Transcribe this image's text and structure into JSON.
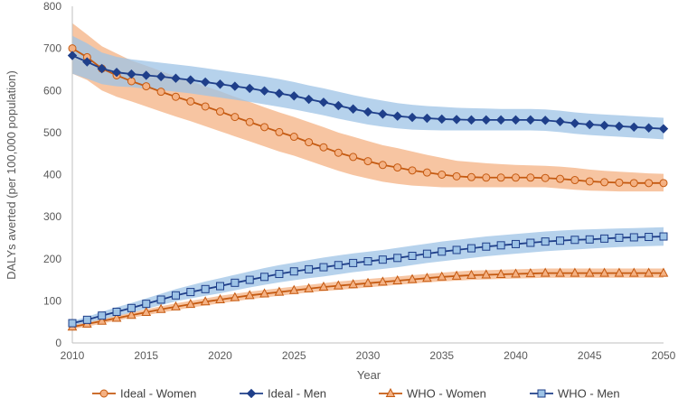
{
  "chart_data": {
    "type": "line",
    "title": "",
    "xlabel": "Year",
    "ylabel": "DALYs averted (per 100,000 population)",
    "xlim": [
      2010,
      2050
    ],
    "ylim": [
      0,
      800
    ],
    "x_ticks": [
      "2010",
      "2015",
      "2020",
      "2025",
      "2030",
      "2035",
      "2040",
      "2045",
      "2050"
    ],
    "y_ticks": [
      "0",
      "100",
      "200",
      "300",
      "400",
      "500",
      "600",
      "700",
      "800"
    ],
    "grid": false,
    "legend_position": "bottom",
    "years": [
      2010,
      2011,
      2012,
      2013,
      2014,
      2015,
      2016,
      2017,
      2018,
      2019,
      2020,
      2021,
      2022,
      2023,
      2024,
      2025,
      2026,
      2027,
      2028,
      2029,
      2030,
      2031,
      2032,
      2033,
      2034,
      2035,
      2036,
      2037,
      2038,
      2039,
      2040,
      2041,
      2042,
      2043,
      2044,
      2045,
      2046,
      2047,
      2048,
      2049,
      2050
    ],
    "series": [
      {
        "name": "Ideal - Women",
        "color": "#c55a11",
        "band_color": "#f4b183",
        "marker": "circle",
        "values": [
          700,
          679,
          652,
          636,
          622,
          610,
          597,
          585,
          574,
          562,
          550,
          537,
          525,
          513,
          501,
          490,
          477,
          465,
          452,
          442,
          432,
          423,
          417,
          410,
          405,
          400,
          396,
          394,
          393,
          393,
          393,
          393,
          392,
          390,
          387,
          384,
          382,
          381,
          380,
          380,
          380
        ],
        "lower": [
          640,
          625,
          600,
          585,
          574,
          562,
          550,
          538,
          527,
          515,
          503,
          491,
          479,
          467,
          455,
          445,
          433,
          421,
          409,
          399,
          391,
          383,
          378,
          374,
          372,
          370,
          370,
          370,
          370,
          370,
          370,
          370,
          370,
          367,
          364,
          362,
          361,
          360,
          360,
          360,
          360
        ],
        "upper": [
          760,
          733,
          705,
          688,
          671,
          659,
          646,
          633,
          622,
          610,
          598,
          585,
          573,
          560,
          548,
          537,
          525,
          513,
          500,
          490,
          480,
          470,
          463,
          455,
          447,
          440,
          433,
          430,
          427,
          425,
          423,
          422,
          421,
          419,
          416,
          412,
          409,
          407,
          405,
          403,
          402
        ]
      },
      {
        "name": "Ideal - Men",
        "color": "#1f3f8a",
        "band_color": "#9dc3e6",
        "marker": "diamond",
        "values": [
          683,
          668,
          652,
          643,
          639,
          636,
          633,
          629,
          625,
          620,
          615,
          610,
          605,
          599,
          593,
          587,
          579,
          572,
          564,
          556,
          549,
          544,
          539,
          536,
          534,
          532,
          531,
          530,
          530,
          530,
          530,
          530,
          529,
          526,
          522,
          519,
          517,
          515,
          513,
          511,
          509
        ],
        "lower": [
          640,
          628,
          615,
          610,
          608,
          604,
          601,
          597,
          593,
          588,
          583,
          578,
          573,
          567,
          561,
          555,
          548,
          541,
          533,
          526,
          519,
          514,
          510,
          507,
          506,
          505,
          505,
          505,
          505,
          505,
          505,
          505,
          504,
          501,
          497,
          494,
          492,
          490,
          488,
          486,
          484
        ],
        "upper": [
          730,
          712,
          690,
          680,
          674,
          670,
          666,
          662,
          658,
          653,
          648,
          643,
          638,
          633,
          627,
          620,
          612,
          605,
          597,
          589,
          582,
          576,
          570,
          566,
          563,
          561,
          559,
          558,
          557,
          556,
          556,
          556,
          555,
          552,
          548,
          545,
          543,
          541,
          539,
          537,
          535
        ]
      },
      {
        "name": "WHO - Women",
        "color": "#c55a11",
        "band_color": "#f4b183",
        "marker": "triangle",
        "values": [
          38,
          45,
          52,
          59,
          66,
          73,
          80,
          86,
          92,
          98,
          103,
          108,
          113,
          117,
          121,
          125,
          129,
          133,
          136,
          139,
          142,
          145,
          148,
          151,
          154,
          157,
          159,
          161,
          162,
          163,
          164,
          165,
          166,
          166,
          166,
          166,
          166,
          166,
          166,
          166,
          166
        ],
        "lower": [
          33,
          39,
          46,
          53,
          60,
          66,
          72,
          78,
          84,
          89,
          94,
          99,
          104,
          108,
          112,
          116,
          120,
          123,
          126,
          129,
          132,
          135,
          138,
          141,
          144,
          146,
          148,
          150,
          151,
          152,
          153,
          154,
          155,
          155,
          155,
          155,
          155,
          155,
          155,
          155,
          155
        ],
        "upper": [
          43,
          51,
          58,
          65,
          72,
          80,
          87,
          94,
          100,
          106,
          112,
          117,
          122,
          126,
          130,
          134,
          138,
          142,
          146,
          149,
          152,
          155,
          158,
          161,
          164,
          167,
          170,
          172,
          173,
          174,
          175,
          176,
          177,
          177,
          177,
          177,
          177,
          177,
          177,
          177,
          177
        ]
      },
      {
        "name": "WHO - Men",
        "color": "#1f3f8a",
        "band_color": "#9dc3e6",
        "marker": "square",
        "values": [
          47,
          55,
          65,
          74,
          83,
          93,
          103,
          113,
          121,
          128,
          135,
          143,
          150,
          157,
          164,
          170,
          175,
          180,
          185,
          190,
          194,
          198,
          202,
          207,
          212,
          217,
          221,
          225,
          229,
          232,
          235,
          238,
          241,
          243,
          245,
          246,
          248,
          250,
          251,
          252,
          253
        ],
        "lower": [
          42,
          48,
          56,
          64,
          72,
          81,
          90,
          99,
          106,
          112,
          118,
          125,
          132,
          138,
          144,
          149,
          154,
          158,
          163,
          168,
          172,
          176,
          180,
          185,
          190,
          194,
          198,
          202,
          206,
          209,
          212,
          215,
          218,
          220,
          222,
          224,
          226,
          228,
          229,
          230,
          231
        ],
        "upper": [
          52,
          62,
          74,
          85,
          95,
          106,
          117,
          128,
          137,
          146,
          154,
          162,
          170,
          178,
          185,
          191,
          197,
          203,
          208,
          213,
          217,
          221,
          226,
          231,
          236,
          241,
          245,
          249,
          253,
          256,
          259,
          262,
          265,
          267,
          269,
          270,
          271,
          272,
          273,
          274,
          275
        ]
      }
    ]
  }
}
